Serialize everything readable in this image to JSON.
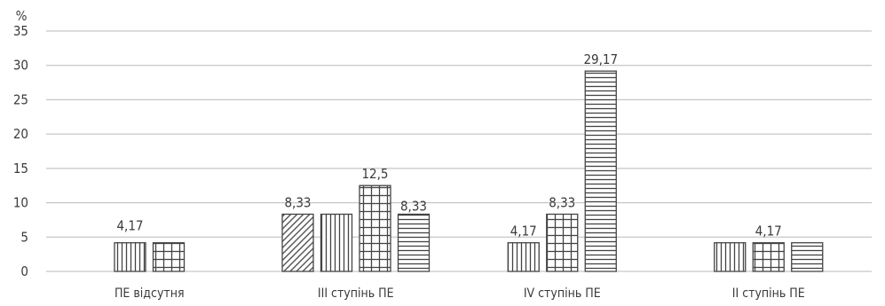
{
  "chart_data": {
    "type": "bar",
    "unit_label": "%",
    "ylim": [
      0,
      35
    ],
    "yticks": [
      "0",
      "5",
      "10",
      "15",
      "20",
      "25",
      "30",
      "35"
    ],
    "grid": true,
    "legend": "none",
    "categories": [
      "ПЕ відсутня",
      "ІІІ ступінь ПЕ",
      "IV ступінь ПЕ",
      "ІІ ступінь ПЕ"
    ],
    "bar_color": "#444444",
    "groups": [
      {
        "bars": [
          {
            "pattern": "vertical",
            "value": 4.17,
            "label": "4,17",
            "label_pos": "above-between"
          },
          {
            "pattern": "grid",
            "value": 4.17
          }
        ]
      },
      {
        "bars": [
          {
            "pattern": "diagonal",
            "value": 8.33,
            "label": "8,33"
          },
          {
            "pattern": "vertical",
            "value": 8.33
          },
          {
            "pattern": "grid",
            "value": 12.5,
            "label": "12,5"
          },
          {
            "pattern": "horizontal",
            "value": 8.33,
            "label": "8,33",
            "label_pos": "right"
          }
        ]
      },
      {
        "bars": [
          {
            "pattern": "vertical",
            "value": 4.17,
            "label": "4,17"
          },
          {
            "pattern": "grid",
            "value": 8.33,
            "label": "8,33"
          },
          {
            "pattern": "horizontal",
            "value": 29.17,
            "label": "29,17"
          }
        ]
      },
      {
        "bars": [
          {
            "pattern": "vertical",
            "value": 4.17
          },
          {
            "pattern": "grid",
            "value": 4.17,
            "label": "4,17"
          },
          {
            "pattern": "horizontal",
            "value": 4.17
          }
        ]
      }
    ]
  }
}
